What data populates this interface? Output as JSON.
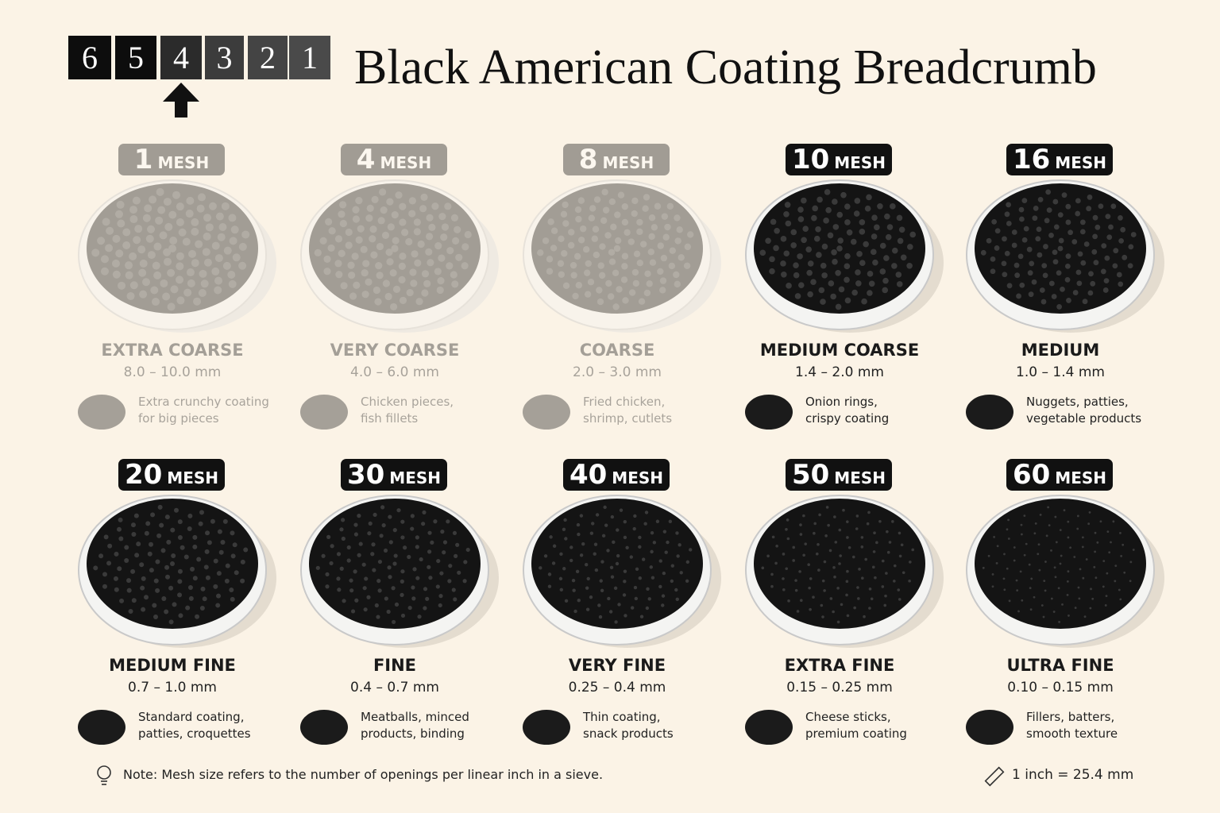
{
  "steps": [
    "6",
    "5",
    "4",
    "3",
    "2",
    "1"
  ],
  "title": "Black American Coating Breadcrumb",
  "cards": [
    {
      "mesh": "1",
      "unit": "MESH",
      "grade": "EXTRA COARSE",
      "range": "8.0 – 10.0 mm",
      "uses": [
        "Extra crunchy coating",
        "for big pieces"
      ]
    },
    {
      "mesh": "4",
      "unit": "MESH",
      "grade": "VERY COARSE",
      "range": "4.0 – 6.0 mm",
      "uses": [
        "Chicken pieces,",
        "fish fillets"
      ]
    },
    {
      "mesh": "8",
      "unit": "MESH",
      "grade": "COARSE",
      "range": "2.0 – 3.0 mm",
      "uses": [
        "Fried chicken,",
        "shrimp, cutlets"
      ]
    },
    {
      "mesh": "10",
      "unit": "MESH",
      "grade": "MEDIUM COARSE",
      "range": "1.4 – 2.0 mm",
      "uses": [
        "Onion rings,",
        "crispy coating"
      ]
    },
    {
      "mesh": "16",
      "unit": "MESH",
      "grade": "MEDIUM",
      "range": "1.0 – 1.4 mm",
      "uses": [
        "Nuggets, patties,",
        "vegetable products"
      ]
    },
    {
      "mesh": "20",
      "unit": "MESH",
      "grade": "MEDIUM FINE",
      "range": "0.7 – 1.0 mm",
      "uses": [
        "Standard coating,",
        "patties, croquettes"
      ]
    },
    {
      "mesh": "30",
      "unit": "MESH",
      "grade": "FINE",
      "range": "0.4 – 0.7 mm",
      "uses": [
        "Meatballs, minced",
        "products, binding"
      ]
    },
    {
      "mesh": "40",
      "unit": "MESH",
      "grade": "VERY FINE",
      "range": "0.25 – 0.4 mm",
      "uses": [
        "Thin coating,",
        "snack products"
      ]
    },
    {
      "mesh": "50",
      "unit": "MESH",
      "grade": "EXTRA FINE",
      "range": "0.15 – 0.25 mm",
      "uses": [
        "Cheese sticks,",
        "premium coating"
      ]
    },
    {
      "mesh": "60",
      "unit": "MESH",
      "grade": "ULTRA FINE",
      "range": "0.10 – 0.15 mm",
      "uses": [
        "Fillers, batters,",
        "smooth texture"
      ]
    }
  ],
  "note": "Note: Mesh size refers to the number of openings per linear inch in a sieve.",
  "conversion": "1 inch = 25.4 mm"
}
